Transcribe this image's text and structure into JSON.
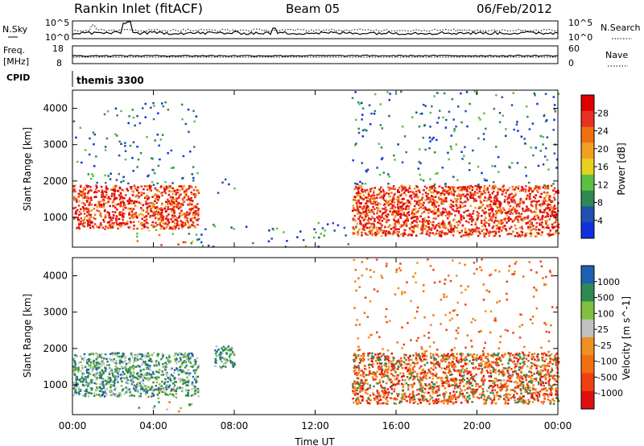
{
  "header": {
    "title": "Rankin Inlet (fitACF)",
    "beam": "Beam 05",
    "date": "06/Feb/2012"
  },
  "nsky_panel": {
    "left_label": "N.Sky",
    "right_label": "N.Search",
    "left_ticks": [
      "10^5",
      "10^0"
    ],
    "right_ticks": [
      "10^5",
      "10^0"
    ]
  },
  "freq_panel": {
    "left_label_1": "Freq.",
    "left_label_2": "[MHz]",
    "right_label": "Nave",
    "left_ticks": [
      "18",
      "8"
    ],
    "right_ticks": [
      "60",
      "0"
    ]
  },
  "cpid_panel": {
    "label": "CPID",
    "program": "themis 3300"
  },
  "colors": {
    "power": [
      "#1030e0",
      "#2050b0",
      "#2e8a50",
      "#5cc040",
      "#e8d020",
      "#f0a020",
      "#f07010",
      "#e83020",
      "#e00000"
    ],
    "velocity": [
      "#e01010",
      "#f04010",
      "#f07010",
      "#f09020",
      "#c0c0c0",
      "#80c040",
      "#2e8a50",
      "#2060b0"
    ]
  },
  "chart_data": [
    {
      "type": "heatmap",
      "title": "Power",
      "xlabel": "",
      "ylabel": "Slant Range [km]",
      "x": [
        "00:00",
        "04:00",
        "08:00",
        "12:00",
        "16:00",
        "20:00",
        "00:00"
      ],
      "yticks": [
        1000,
        2000,
        3000,
        4000
      ],
      "ylim": [
        180,
        4500
      ],
      "xlim_hours": [
        0,
        24
      ],
      "colorbar": {
        "label": "Power [dB]",
        "ticks": [
          "28",
          "24",
          "20",
          "16",
          "12",
          "8",
          "4"
        ],
        "range": [
          0,
          30
        ]
      },
      "regions": [
        {
          "t0": 0.0,
          "t1": 6.2,
          "r0": 700,
          "r1": 1900,
          "level": "strong"
        },
        {
          "t0": 2.8,
          "t1": 6.2,
          "r0": 250,
          "r1": 900,
          "level": "moderate"
        },
        {
          "t0": 0.0,
          "t1": 6.2,
          "r0": 1900,
          "r1": 4200,
          "level": "sparse"
        },
        {
          "t0": 7.0,
          "t1": 8.0,
          "r0": 1500,
          "r1": 2100,
          "level": "weak"
        },
        {
          "t0": 6.2,
          "t1": 14.0,
          "r0": 180,
          "r1": 900,
          "level": "sparse"
        },
        {
          "t0": 13.8,
          "t1": 24.0,
          "r0": 500,
          "r1": 1900,
          "level": "strong"
        },
        {
          "t0": 13.8,
          "t1": 24.0,
          "r0": 1900,
          "r1": 4500,
          "level": "sparse"
        }
      ]
    },
    {
      "type": "heatmap",
      "title": "Velocity",
      "xlabel": "Time UT",
      "ylabel": "Slant Range [km]",
      "x": [
        "00:00",
        "04:00",
        "08:00",
        "12:00",
        "16:00",
        "20:00",
        "00:00"
      ],
      "yticks": [
        1000,
        2000,
        3000,
        4000
      ],
      "ylim": [
        180,
        4500
      ],
      "xlim_hours": [
        0,
        24
      ],
      "colorbar": {
        "label": "Velocity [m s^-1]",
        "ticks": [
          "1000",
          "500",
          "100",
          "25",
          "-25",
          "-100",
          "-500",
          "-1000"
        ],
        "range": [
          -1000,
          1000
        ]
      },
      "regions": [
        {
          "t0": 0.0,
          "t1": 6.2,
          "r0": 700,
          "r1": 1900,
          "level": "toward-slow"
        },
        {
          "t0": 2.8,
          "t1": 6.2,
          "r0": 250,
          "r1": 900,
          "level": "mixed"
        },
        {
          "t0": 7.0,
          "t1": 8.0,
          "r0": 1500,
          "r1": 2100,
          "level": "toward-slow"
        },
        {
          "t0": 13.8,
          "t1": 24.0,
          "r0": 500,
          "r1": 1900,
          "level": "away"
        },
        {
          "t0": 13.8,
          "t1": 24.0,
          "r0": 1900,
          "r1": 4500,
          "level": "away-sparse"
        }
      ]
    }
  ]
}
